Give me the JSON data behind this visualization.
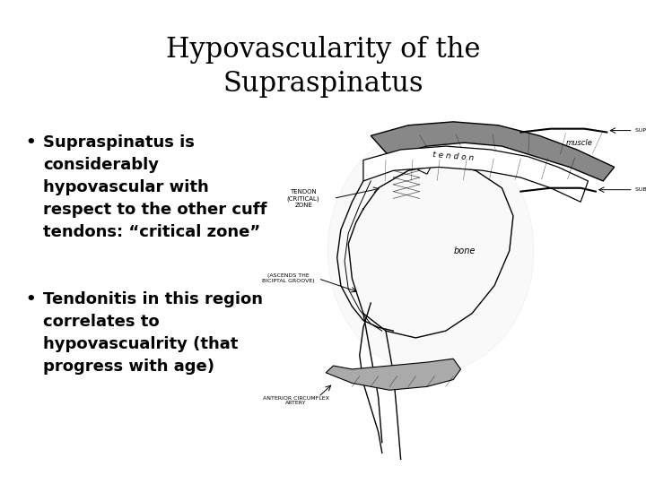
{
  "title_line1": "Hypovascularity of the",
  "title_line2": "Supraspinatus",
  "bullet1_lines": [
    "Supraspinatus is",
    "considerably",
    "hypovascular with",
    "respect to the other cuff",
    "tendons: “critical zone”"
  ],
  "bullet2_lines": [
    "Tendonitis in this region",
    "correlates to",
    "hypovascualrity (that",
    "progress with age)"
  ],
  "bg_color": "#ffffff",
  "text_color": "#000000",
  "title_fontsize": 22,
  "bullet_fontsize": 13,
  "title_font": "DejaVu Serif",
  "bullet_font": "DejaVu Sans"
}
